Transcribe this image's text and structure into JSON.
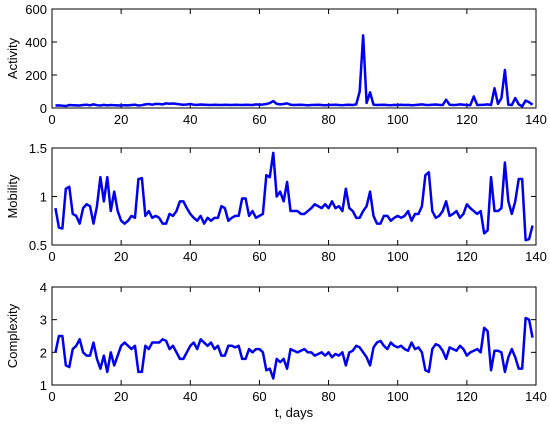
{
  "chart_data": [
    {
      "type": "line",
      "ylabel": "Activity",
      "color": "#0000ee",
      "xlim": [
        0,
        140
      ],
      "xticks": [
        0,
        20,
        40,
        60,
        80,
        100,
        120,
        140
      ],
      "ylim": [
        0,
        600
      ],
      "yticks": [
        0,
        200,
        400,
        600
      ],
      "x": [
        1,
        2,
        3,
        4,
        5,
        6,
        7,
        8,
        9,
        10,
        11,
        12,
        13,
        14,
        15,
        16,
        17,
        18,
        19,
        20,
        21,
        22,
        23,
        24,
        25,
        26,
        27,
        28,
        29,
        30,
        31,
        32,
        33,
        34,
        35,
        36,
        37,
        38,
        39,
        40,
        41,
        42,
        43,
        44,
        45,
        46,
        47,
        48,
        49,
        50,
        51,
        52,
        53,
        54,
        55,
        56,
        57,
        58,
        59,
        60,
        61,
        62,
        63,
        64,
        65,
        66,
        67,
        68,
        69,
        70,
        71,
        72,
        73,
        74,
        75,
        76,
        77,
        78,
        79,
        80,
        81,
        82,
        83,
        84,
        85,
        86,
        87,
        88,
        89,
        90,
        91,
        92,
        93,
        94,
        95,
        96,
        97,
        98,
        99,
        100,
        101,
        102,
        103,
        104,
        105,
        106,
        107,
        108,
        109,
        110,
        111,
        112,
        113,
        114,
        115,
        116,
        117,
        118,
        119,
        120,
        121,
        122,
        123,
        124,
        125,
        126,
        127,
        128,
        129,
        130,
        131,
        132,
        133,
        134,
        135,
        136,
        137,
        138,
        139
      ],
      "values": [
        15,
        16,
        14,
        12,
        18,
        17,
        16,
        15,
        18,
        20,
        16,
        22,
        17,
        15,
        19,
        16,
        18,
        17,
        16,
        15,
        17,
        16,
        18,
        20,
        15,
        17,
        22,
        24,
        20,
        25,
        24,
        22,
        28,
        26,
        27,
        25,
        22,
        20,
        21,
        24,
        20,
        19,
        21,
        20,
        19,
        18,
        20,
        19,
        18,
        20,
        19,
        18,
        20,
        19,
        18,
        20,
        19,
        18,
        22,
        20,
        21,
        24,
        30,
        42,
        25,
        22,
        24,
        28,
        20,
        18,
        19,
        20,
        18,
        17,
        18,
        19,
        20,
        18,
        17,
        18,
        19,
        20,
        18,
        17,
        19,
        20,
        18,
        22,
        100,
        440,
        30,
        95,
        20,
        18,
        19,
        20,
        18,
        17,
        19,
        18,
        20,
        18,
        19,
        17,
        18,
        20,
        22,
        19,
        18,
        20,
        21,
        19,
        18,
        50,
        20,
        18,
        19,
        22,
        20,
        18,
        17,
        70,
        18,
        19,
        20,
        22,
        18,
        120,
        25,
        60,
        230,
        20,
        18,
        60,
        22,
        10,
        45,
        35,
        20
      ]
    },
    {
      "type": "line",
      "ylabel": "Mobility",
      "color": "#0000ee",
      "xlim": [
        0,
        140
      ],
      "xticks": [
        0,
        20,
        40,
        60,
        80,
        100,
        120,
        140
      ],
      "ylim": [
        0.5,
        1.5
      ],
      "yticks": [
        0.5,
        1,
        1.5
      ],
      "x": [
        1,
        2,
        3,
        4,
        5,
        6,
        7,
        8,
        9,
        10,
        11,
        12,
        13,
        14,
        15,
        16,
        17,
        18,
        19,
        20,
        21,
        22,
        23,
        24,
        25,
        26,
        27,
        28,
        29,
        30,
        31,
        32,
        33,
        34,
        35,
        36,
        37,
        38,
        39,
        40,
        41,
        42,
        43,
        44,
        45,
        46,
        47,
        48,
        49,
        50,
        51,
        52,
        53,
        54,
        55,
        56,
        57,
        58,
        59,
        60,
        61,
        62,
        63,
        64,
        65,
        66,
        67,
        68,
        69,
        70,
        71,
        72,
        73,
        74,
        75,
        76,
        77,
        78,
        79,
        80,
        81,
        82,
        83,
        84,
        85,
        86,
        87,
        88,
        89,
        90,
        91,
        92,
        93,
        94,
        95,
        96,
        97,
        98,
        99,
        100,
        101,
        102,
        103,
        104,
        105,
        106,
        107,
        108,
        109,
        110,
        111,
        112,
        113,
        114,
        115,
        116,
        117,
        118,
        119,
        120,
        121,
        122,
        123,
        124,
        125,
        126,
        127,
        128,
        129,
        130,
        131,
        132,
        133,
        134,
        135,
        136,
        137,
        138,
        139
      ],
      "values": [
        0.88,
        0.68,
        0.67,
        1.08,
        1.1,
        0.82,
        0.8,
        0.72,
        0.88,
        0.92,
        0.9,
        0.72,
        0.9,
        1.2,
        0.95,
        1.2,
        0.85,
        1.05,
        0.85,
        0.75,
        0.72,
        0.75,
        0.8,
        0.78,
        1.18,
        1.19,
        0.8,
        0.85,
        0.78,
        0.8,
        0.78,
        0.72,
        0.72,
        0.82,
        0.8,
        0.85,
        0.95,
        0.95,
        0.88,
        0.82,
        0.78,
        0.75,
        0.8,
        0.72,
        0.78,
        0.75,
        0.78,
        0.78,
        0.9,
        0.88,
        0.75,
        0.78,
        0.8,
        0.8,
        0.98,
        0.98,
        0.8,
        0.85,
        0.78,
        0.8,
        0.82,
        1.22,
        1.2,
        1.45,
        1.0,
        1.05,
        0.95,
        1.15,
        0.85,
        0.85,
        0.85,
        0.82,
        0.82,
        0.85,
        0.88,
        0.92,
        0.9,
        0.88,
        0.92,
        0.88,
        0.95,
        0.88,
        0.9,
        0.85,
        1.08,
        0.88,
        0.85,
        0.78,
        0.78,
        0.85,
        0.9,
        1.05,
        0.8,
        0.72,
        0.72,
        0.8,
        0.8,
        0.75,
        0.78,
        0.8,
        0.78,
        0.8,
        0.85,
        0.75,
        0.82,
        0.82,
        0.9,
        1.22,
        1.25,
        0.85,
        0.78,
        0.8,
        0.85,
        0.95,
        0.8,
        0.82,
        0.85,
        0.78,
        0.82,
        0.92,
        0.88,
        0.85,
        0.82,
        0.85,
        0.62,
        0.65,
        1.2,
        0.85,
        0.85,
        0.88,
        1.35,
        0.95,
        0.82,
        0.95,
        1.18,
        1.18,
        0.55,
        0.56,
        0.7
      ]
    },
    {
      "type": "line",
      "ylabel": "Complexity",
      "xlabel": "t, days",
      "color": "#0000ee",
      "xlim": [
        0,
        140
      ],
      "xticks": [
        0,
        20,
        40,
        60,
        80,
        100,
        120,
        140
      ],
      "ylim": [
        1,
        4
      ],
      "yticks": [
        1,
        2,
        3,
        4
      ],
      "x": [
        1,
        2,
        3,
        4,
        5,
        6,
        7,
        8,
        9,
        10,
        11,
        12,
        13,
        14,
        15,
        16,
        17,
        18,
        19,
        20,
        21,
        22,
        23,
        24,
        25,
        26,
        27,
        28,
        29,
        30,
        31,
        32,
        33,
        34,
        35,
        36,
        37,
        38,
        39,
        40,
        41,
        42,
        43,
        44,
        45,
        46,
        47,
        48,
        49,
        50,
        51,
        52,
        53,
        54,
        55,
        56,
        57,
        58,
        59,
        60,
        61,
        62,
        63,
        64,
        65,
        66,
        67,
        68,
        69,
        70,
        71,
        72,
        73,
        74,
        75,
        76,
        77,
        78,
        79,
        80,
        81,
        82,
        83,
        84,
        85,
        86,
        87,
        88,
        89,
        90,
        91,
        92,
        93,
        94,
        95,
        96,
        97,
        98,
        99,
        100,
        101,
        102,
        103,
        104,
        105,
        106,
        107,
        108,
        109,
        110,
        111,
        112,
        113,
        114,
        115,
        116,
        117,
        118,
        119,
        120,
        121,
        122,
        123,
        124,
        125,
        126,
        127,
        128,
        129,
        130,
        131,
        132,
        133,
        134,
        135,
        136,
        137,
        138,
        139
      ],
      "values": [
        2.0,
        2.5,
        2.5,
        1.6,
        1.55,
        2.1,
        2.2,
        2.4,
        2.0,
        1.9,
        1.9,
        2.3,
        1.8,
        1.5,
        1.9,
        1.4,
        2.0,
        1.6,
        1.9,
        2.2,
        2.3,
        2.2,
        2.1,
        2.2,
        1.4,
        1.4,
        2.2,
        2.1,
        2.3,
        2.3,
        2.3,
        2.4,
        2.35,
        2.1,
        2.2,
        2.0,
        1.8,
        1.8,
        2.0,
        2.2,
        2.3,
        2.1,
        2.4,
        2.3,
        2.2,
        2.3,
        2.1,
        2.2,
        1.9,
        1.9,
        2.2,
        2.2,
        2.15,
        2.2,
        1.8,
        1.8,
        2.1,
        2.0,
        2.1,
        2.1,
        2.0,
        1.45,
        1.5,
        1.2,
        1.8,
        1.7,
        1.8,
        1.5,
        2.1,
        2.05,
        2.0,
        2.05,
        2.1,
        2.0,
        2.0,
        1.9,
        1.95,
        2.0,
        1.9,
        2.0,
        1.85,
        1.95,
        1.9,
        2.0,
        1.6,
        2.0,
        2.05,
        2.2,
        2.15,
        2.0,
        1.85,
        1.6,
        2.15,
        2.3,
        2.35,
        2.2,
        2.1,
        2.3,
        2.2,
        2.15,
        2.2,
        2.1,
        2.05,
        2.3,
        2.1,
        2.15,
        2.0,
        1.45,
        1.4,
        2.1,
        2.25,
        2.2,
        2.05,
        1.8,
        2.15,
        2.1,
        2.05,
        2.2,
        2.1,
        1.9,
        2.0,
        2.05,
        2.1,
        2.0,
        2.75,
        2.65,
        1.45,
        2.05,
        2.05,
        2.0,
        1.4,
        1.85,
        2.1,
        1.85,
        1.5,
        1.5,
        3.05,
        3.0,
        2.45
      ]
    }
  ]
}
